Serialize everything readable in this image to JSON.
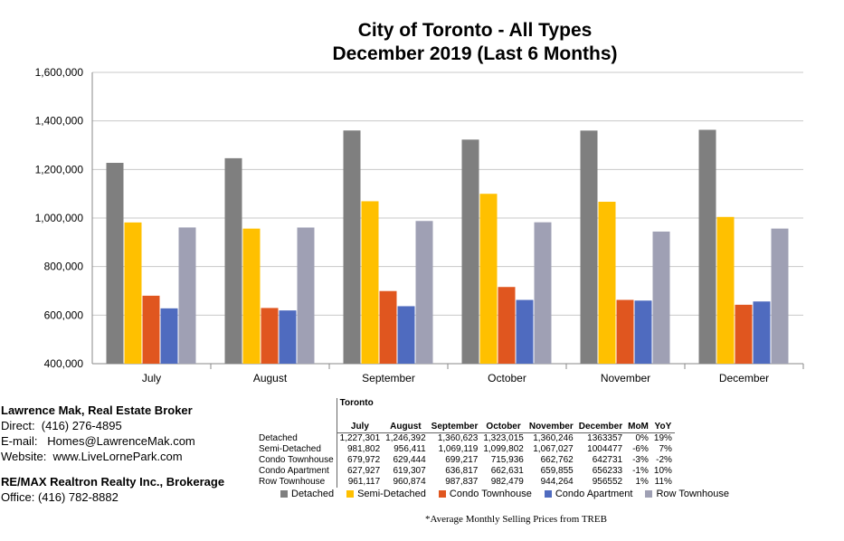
{
  "chart_data": {
    "type": "bar",
    "title_line1": "City of Toronto - All Types",
    "title_line2": "December 2019 (Last 6 Months)",
    "categories": [
      "July",
      "August",
      "September",
      "October",
      "November",
      "December"
    ],
    "ylim": [
      400000,
      1600000
    ],
    "yticks": [
      "400,000",
      "600,000",
      "800,000",
      "1,000,000",
      "1,200,000",
      "1,400,000",
      "1,600,000"
    ],
    "ytick_values": [
      400000,
      600000,
      800000,
      1000000,
      1200000,
      1400000,
      1600000
    ],
    "series": [
      {
        "name": "Detached",
        "color": "#7f7f7f",
        "values": [
          1227301,
          1246392,
          1360623,
          1323015,
          1360246,
          1363357
        ]
      },
      {
        "name": "Semi-Detached",
        "color": "#ffc000",
        "values": [
          981802,
          956411,
          1069119,
          1099802,
          1067027,
          1004477
        ]
      },
      {
        "name": "Condo Townhouse",
        "color": "#e0561f",
        "values": [
          679972,
          629444,
          699217,
          715936,
          662762,
          642731
        ]
      },
      {
        "name": "Condo Apartment",
        "color": "#4f6bbf",
        "values": [
          627927,
          619307,
          636817,
          662631,
          659855,
          656233
        ]
      },
      {
        "name": "Row Townhouse",
        "color": "#9fa0b4",
        "values": [
          961117,
          960874,
          987837,
          982479,
          944264,
          956552
        ]
      }
    ]
  },
  "contact": {
    "name": "Lawrence Mak, Real Estate Broker",
    "direct": "Direct:  (416) 276-4895",
    "email": "E-mail:   Homes@LawrenceMak.com",
    "website": "Website:  www.LiveLornePark.com",
    "brokerage": "RE/MAX Realtron Realty Inc., Brokerage",
    "office": "Office: (416) 782-8882"
  },
  "table": {
    "region": "Toronto",
    "headers": [
      "July",
      "August",
      "September",
      "October",
      "November",
      "December",
      "MoM",
      "YoY"
    ],
    "rows": [
      {
        "label": "Detached",
        "cells": [
          "1,227,301",
          "1,246,392",
          "1,360,623",
          "1,323,015",
          "1,360,246",
          "1363357",
          "0%",
          "19%"
        ]
      },
      {
        "label": "Semi-Detached",
        "cells": [
          "981,802",
          "956,411",
          "1,069,119",
          "1,099,802",
          "1,067,027",
          "1004477",
          "-6%",
          "7%"
        ]
      },
      {
        "label": "Condo Townhouse",
        "cells": [
          "679,972",
          "629,444",
          "699,217",
          "715,936",
          "662,762",
          "642731",
          "-3%",
          "-2%"
        ]
      },
      {
        "label": "Condo Apartment",
        "cells": [
          "627,927",
          "619,307",
          "636,817",
          "662,631",
          "659,855",
          "656233",
          "-1%",
          "10%"
        ]
      },
      {
        "label": "Row Townhouse",
        "cells": [
          "961,117",
          "960,874",
          "987,837",
          "982,479",
          "944,264",
          "956552",
          "1%",
          "11%"
        ]
      }
    ]
  },
  "footnote": "*Average Monthly Selling Prices  from TREB"
}
